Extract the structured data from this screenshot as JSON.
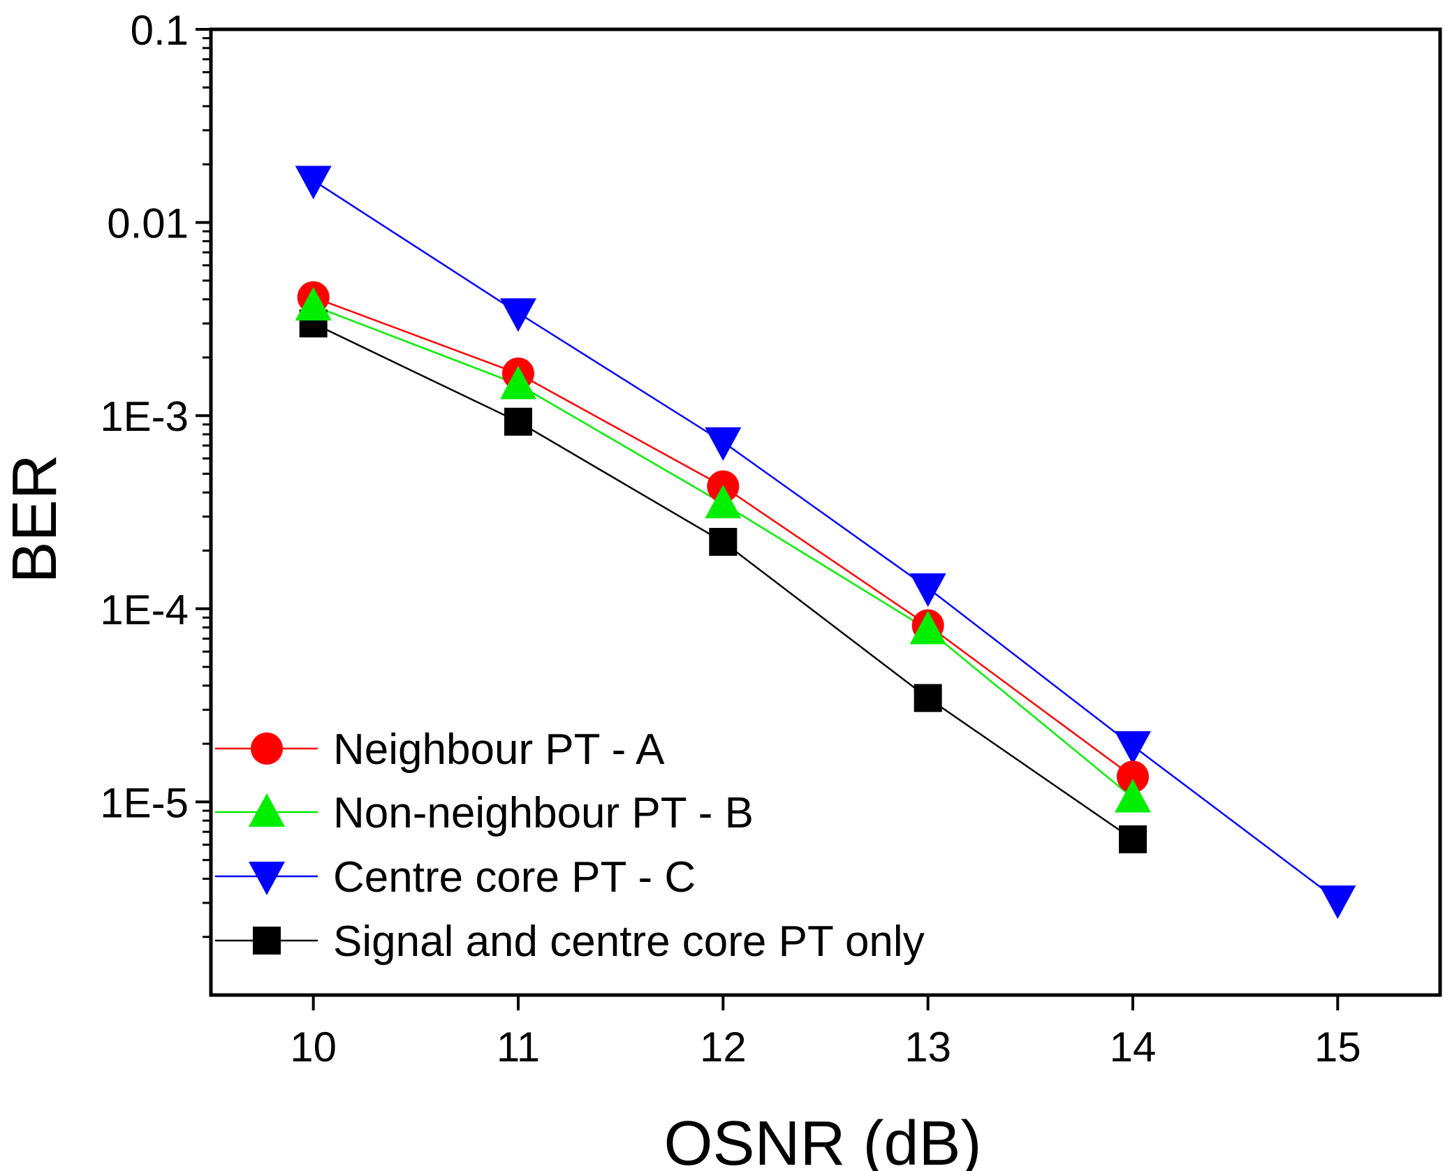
{
  "chart_data": {
    "type": "line",
    "xlabel": "OSNR (dB)",
    "ylabel": "BER",
    "x_scale": "linear",
    "y_scale": "log",
    "xlim": [
      9.5,
      15.5
    ],
    "ylim": [
      1e-06,
      0.1
    ],
    "x_ticks": [
      10,
      11,
      12,
      13,
      14,
      15
    ],
    "x_tick_labels": [
      "10",
      "11",
      "12",
      "13",
      "14",
      "15"
    ],
    "y_ticks": [
      0.1,
      0.01,
      0.001,
      0.0001,
      1e-05
    ],
    "y_tick_labels": [
      "0.1",
      "0.01",
      "1E-3",
      "1E-4",
      "1E-5"
    ],
    "grid": false,
    "legend_position": "bottom-left",
    "series": [
      {
        "name": "Neighbour PT - A",
        "color": "#ff0000",
        "marker": "circle",
        "x": [
          10,
          11,
          12,
          13,
          14
        ],
        "y": [
          0.0041,
          0.00165,
          0.00043,
          8.2e-05,
          1.35e-05
        ]
      },
      {
        "name": "Non-neighbour PT - B",
        "color": "#00ee00",
        "marker": "triangle-up",
        "x": [
          10,
          11,
          12,
          13,
          14
        ],
        "y": [
          0.0037,
          0.00145,
          0.00035,
          7.8e-05,
          1.05e-05
        ]
      },
      {
        "name": "Centre core PT - C",
        "color": "#0000ff",
        "marker": "triangle-down",
        "x": [
          10,
          11,
          12,
          13,
          14,
          15
        ],
        "y": [
          0.0165,
          0.0034,
          0.00073,
          0.000128,
          1.95e-05,
          3.1e-06
        ]
      },
      {
        "name": "Signal and centre core PT only",
        "color": "#000000",
        "marker": "square",
        "x": [
          10,
          11,
          12,
          13,
          14
        ],
        "y": [
          0.003,
          0.00093,
          0.000222,
          3.45e-05,
          6.4e-06
        ]
      }
    ]
  }
}
